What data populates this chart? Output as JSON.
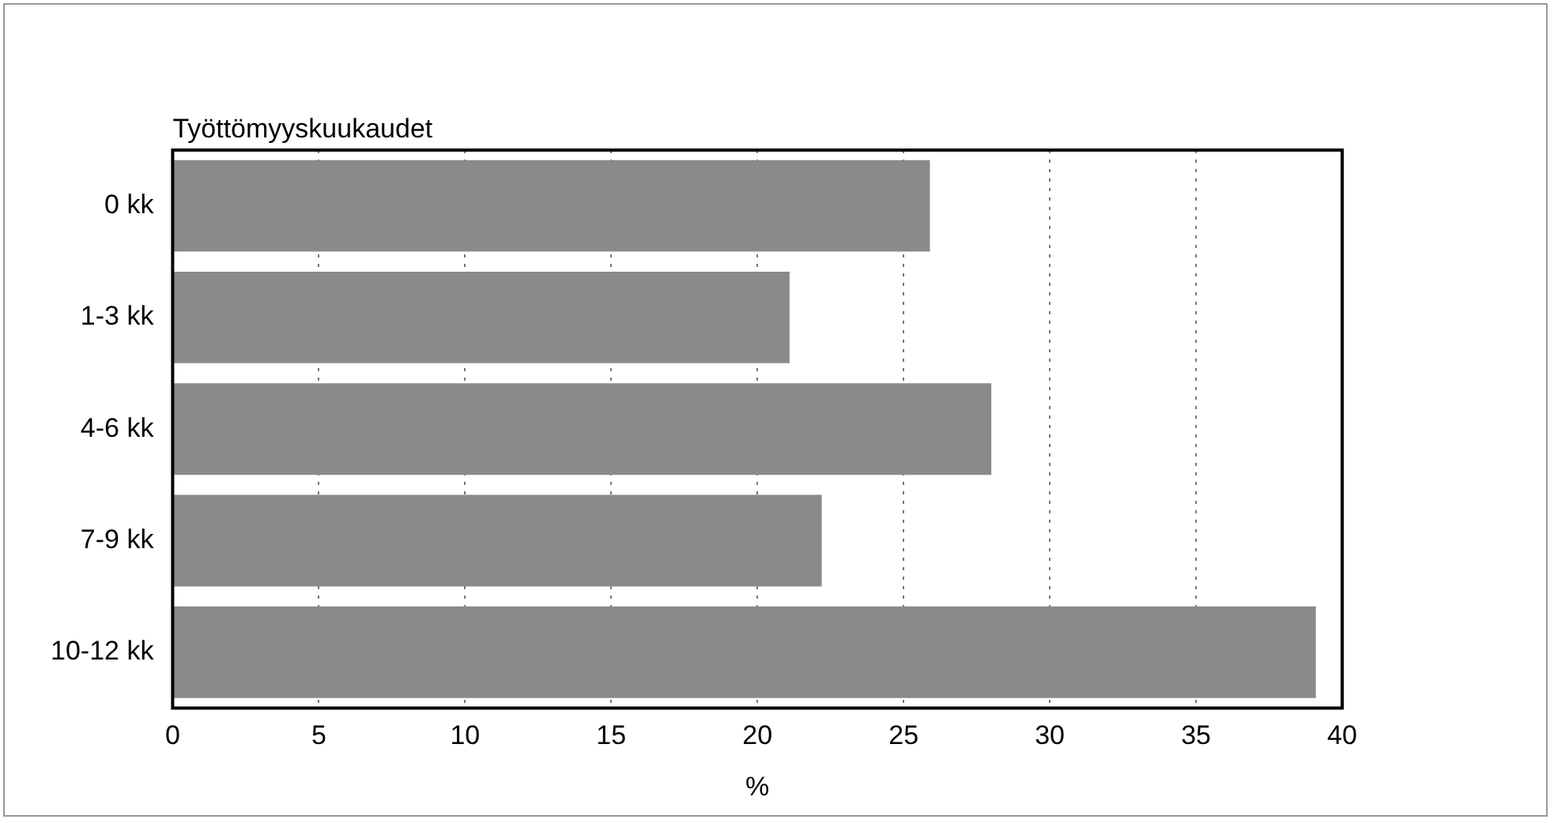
{
  "chart_data": {
    "type": "bar",
    "orientation": "horizontal",
    "ylabel": "Työttömyyskuukaudet",
    "xlabel": "%",
    "categories": [
      "0 kk",
      "1-3 kk",
      "4-6 kk",
      "7-9 kk",
      "10-12 kk"
    ],
    "values": [
      25.9,
      21.1,
      28.0,
      22.2,
      39.1
    ],
    "color": "#8a8a8a",
    "xlim": [
      0,
      40
    ],
    "xticks": [
      0,
      5,
      10,
      15,
      20,
      25,
      30,
      35,
      40
    ],
    "grid": "x",
    "legend": false
  }
}
